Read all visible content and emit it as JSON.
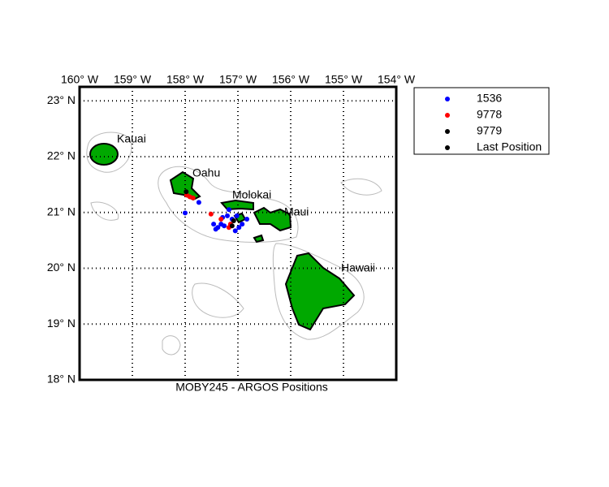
{
  "chart_data": {
    "type": "scatter",
    "title": "MOBY245 - ARGOS Positions",
    "annotations": [
      "Kauai",
      "Oahu",
      "Molokai",
      "Maui",
      "Hawaii"
    ],
    "xlim": [
      -160,
      -154
    ],
    "ylim": [
      18,
      23.25
    ],
    "xticks": [
      {
        "value": -160,
        "label": "160° W"
      },
      {
        "value": -159,
        "label": "159° W"
      },
      {
        "value": -158,
        "label": "158° W"
      },
      {
        "value": -157,
        "label": "157° W"
      },
      {
        "value": -156,
        "label": "156° W"
      },
      {
        "value": -155,
        "label": "155° W"
      },
      {
        "value": -154,
        "label": "154° W"
      }
    ],
    "yticks": [
      {
        "value": 18,
        "label": "18° N"
      },
      {
        "value": 19,
        "label": "19° N"
      },
      {
        "value": 20,
        "label": "20° N"
      },
      {
        "value": 21,
        "label": "21° N"
      },
      {
        "value": 22,
        "label": "22° N"
      },
      {
        "value": 23,
        "label": "23° N"
      }
    ],
    "grid": true,
    "series": [
      {
        "name": "1536",
        "color": "#0000ff",
        "x": [
          -158.0,
          -157.74,
          -157.46,
          -157.38,
          -157.32,
          -157.26,
          -157.2,
          -157.17,
          -157.11,
          -157.05,
          -156.98,
          -156.92,
          -156.83,
          -157.29,
          -157.42,
          -157.02
        ],
        "y": [
          20.99,
          21.18,
          20.79,
          20.73,
          20.79,
          20.76,
          20.94,
          21.05,
          20.88,
          20.67,
          20.73,
          20.79,
          20.88,
          20.91,
          20.7,
          20.94
        ]
      },
      {
        "name": "9778",
        "color": "#ff0000",
        "x": [
          -157.97,
          -157.91,
          -157.85,
          -157.51,
          -157.32,
          -157.14,
          -157.17
        ],
        "y": [
          21.31,
          21.28,
          21.26,
          20.97,
          20.88,
          20.79,
          20.73
        ]
      },
      {
        "name": "9779",
        "color": "#000000",
        "x": [
          -157.98,
          -157.11
        ],
        "y": [
          21.37,
          20.76
        ]
      },
      {
        "name": "Last Position",
        "color": "#000000",
        "x": [
          -157.08
        ],
        "y": [
          20.85
        ]
      }
    ]
  }
}
